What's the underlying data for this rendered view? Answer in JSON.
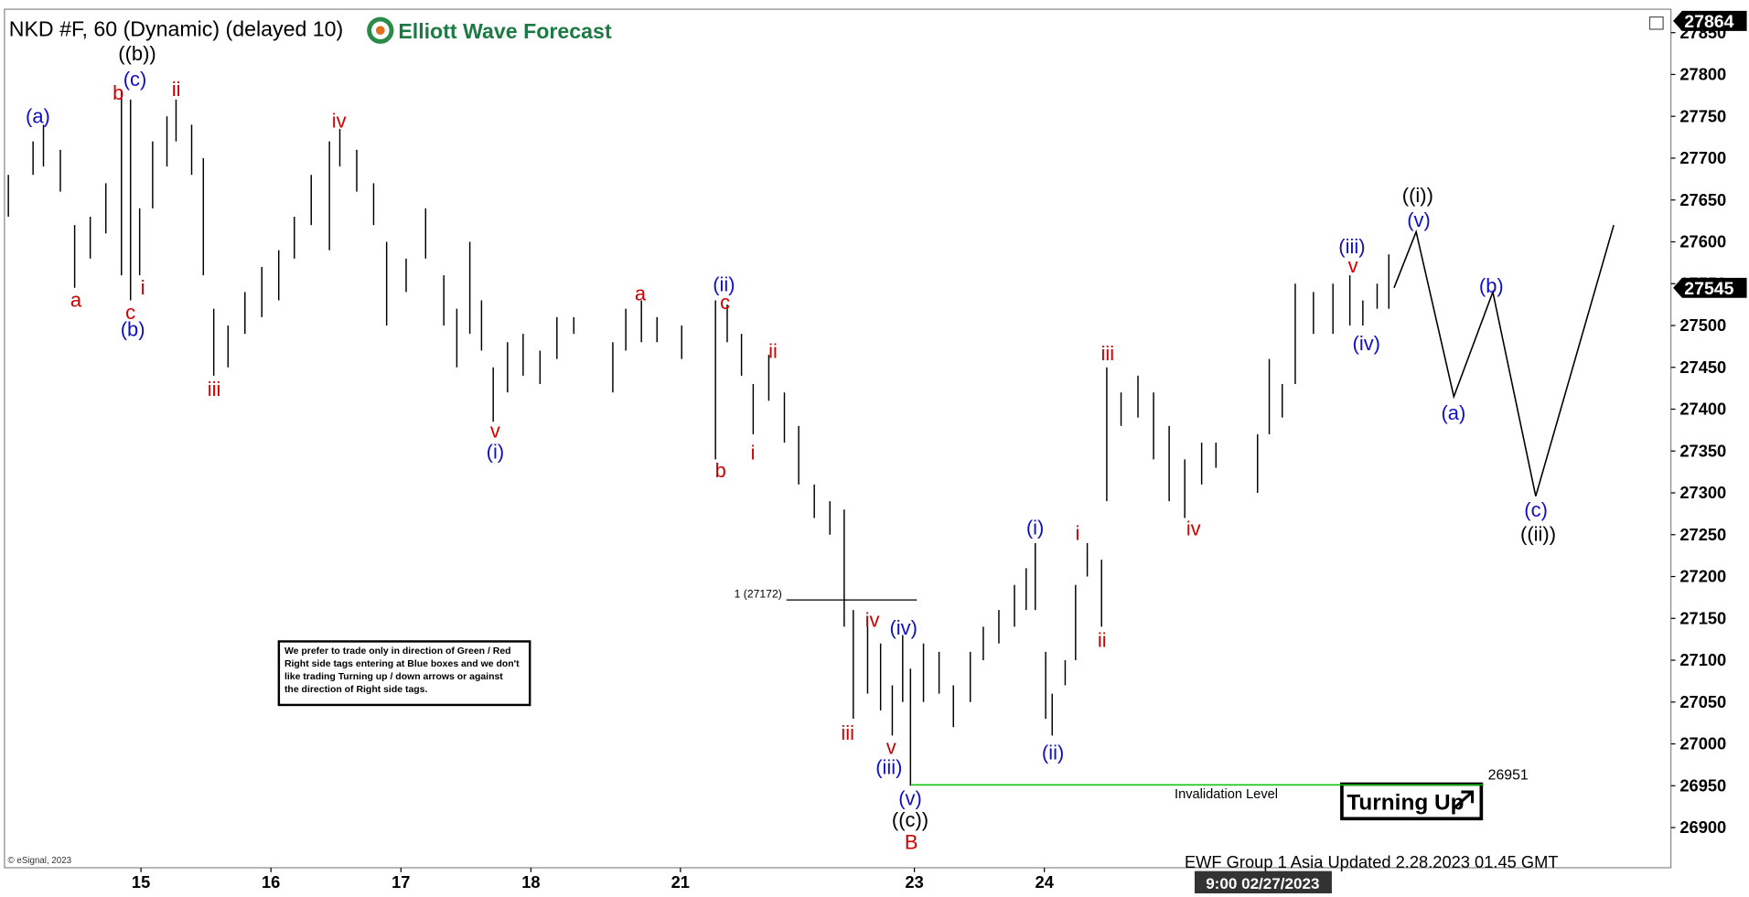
{
  "chart_data": {
    "type": "ohlc",
    "title": "NKD #F, 60 (Dynamic) (delayed 10)",
    "logo": "Elliott Wave Forecast",
    "footer": "EWF Group 1 Asia Updated 2.28.2023 01.45 GMT",
    "copyright": "© eSignal, 2023",
    "time_tag": "9:00 02/27/2023",
    "signal": "Turning Up",
    "note": [
      "We prefer to trade only in direction of Green / Red",
      "Right side tags entering at Blue boxes and we don't",
      "like trading Turning up / down arrows or against",
      "the direction of Right side tags."
    ],
    "xlim": [
      -0.05,
      12.77
    ],
    "xticks": [
      {
        "value": 1,
        "label": "15"
      },
      {
        "value": 2,
        "label": "16"
      },
      {
        "value": 3,
        "label": "17"
      },
      {
        "value": 4,
        "label": "18"
      },
      {
        "value": 5.15,
        "label": "21"
      },
      {
        "value": 6.95,
        "label": "23"
      },
      {
        "value": 7.95,
        "label": "24"
      }
    ],
    "ylim": [
      26852,
      27878
    ],
    "yticks": [
      26900,
      26950,
      27000,
      27050,
      27100,
      27150,
      27200,
      27250,
      27300,
      27350,
      27400,
      27450,
      27500,
      27550,
      27600,
      27650,
      27700,
      27750,
      27800,
      27850
    ],
    "bar_color": "#000000",
    "bars": {
      "x": [
        -0.02,
        0.17,
        0.25,
        0.38,
        0.49,
        0.61,
        0.73,
        0.85,
        0.92,
        0.99,
        1.09,
        1.2,
        1.27,
        1.39,
        1.48,
        1.56,
        1.67,
        1.8,
        1.93,
        2.06,
        2.18,
        2.31,
        2.45,
        2.53,
        2.66,
        2.79,
        2.89,
        3.04,
        3.19,
        3.33,
        3.43,
        3.53,
        3.62,
        3.71,
        3.82,
        3.94,
        4.07,
        4.2,
        4.33,
        4.63,
        4.73,
        4.85,
        4.97,
        5.16,
        5.42,
        5.51,
        5.62,
        5.71,
        5.83,
        5.95,
        6.06,
        6.18,
        6.3,
        6.41,
        6.48,
        6.59,
        6.69,
        6.78,
        6.86,
        6.92,
        7.02,
        7.14,
        7.25,
        7.38,
        7.48,
        7.6,
        7.72,
        7.81,
        7.88,
        7.96,
        8.01,
        8.11,
        8.19,
        8.28,
        8.39,
        8.43,
        8.54,
        8.67,
        8.79,
        8.91,
        9.03,
        9.16,
        9.27,
        9.59,
        9.68,
        9.78,
        9.88,
        10.02,
        10.17,
        10.3,
        10.4,
        10.51,
        10.6
      ],
      "high": [
        27680,
        27720,
        27740,
        27710,
        27620,
        27630,
        27670,
        27780,
        27770,
        27640,
        27720,
        27750,
        27770,
        27740,
        27700,
        27520,
        27500,
        27540,
        27570,
        27590,
        27630,
        27680,
        27720,
        27735,
        27710,
        27670,
        27600,
        27580,
        27640,
        27560,
        27520,
        27600,
        27530,
        27450,
        27480,
        27490,
        27470,
        27510,
        27510,
        27480,
        27520,
        27530,
        27510,
        27500,
        27530,
        27525,
        27490,
        27430,
        27465,
        27420,
        27380,
        27310,
        27290,
        27280,
        27160,
        27140,
        27120,
        27070,
        27130,
        27090,
        27120,
        27110,
        27070,
        27110,
        27140,
        27160,
        27190,
        27210,
        27240,
        27110,
        27060,
        27100,
        27190,
        27240,
        27220,
        27450,
        27420,
        27440,
        27420,
        27380,
        27340,
        27360,
        27360,
        27370,
        27460,
        27430,
        27550,
        27540,
        27550,
        27560,
        27530,
        27550,
        27585
      ],
      "low": [
        27630,
        27680,
        27690,
        27660,
        27545,
        27580,
        27610,
        27560,
        27530,
        27560,
        27640,
        27690,
        27720,
        27680,
        27560,
        27440,
        27450,
        27490,
        27510,
        27530,
        27580,
        27620,
        27590,
        27690,
        27660,
        27620,
        27500,
        27540,
        27580,
        27500,
        27450,
        27490,
        27470,
        27385,
        27420,
        27440,
        27430,
        27460,
        27490,
        27420,
        27470,
        27480,
        27480,
        27460,
        27340,
        27480,
        27440,
        27370,
        27410,
        27360,
        27310,
        27270,
        27250,
        27140,
        27030,
        27060,
        27040,
        27010,
        27050,
        26950,
        27050,
        27060,
        27020,
        27050,
        27100,
        27120,
        27140,
        27160,
        27160,
        27030,
        27010,
        27070,
        27100,
        27200,
        27140,
        27290,
        27380,
        27390,
        27340,
        27290,
        27270,
        27310,
        27330,
        27300,
        27370,
        27390,
        27430,
        27490,
        27490,
        27500,
        27500,
        27520,
        27520
      ]
    },
    "projection": {
      "color": "#000000",
      "x": [
        10.64,
        10.81,
        11.1,
        11.4,
        11.73,
        12.33
      ],
      "y": [
        27545,
        27612,
        27415,
        27540,
        27296,
        27620
      ]
    },
    "fib_level": {
      "label": "1 (27172)",
      "value": 27172
    },
    "invalidation": {
      "label": "26951",
      "text": "Invalidation Level",
      "value": 26951,
      "color": "#00c000"
    },
    "price_tags": [
      {
        "label": "27864",
        "value": 27864
      },
      {
        "label": "27545",
        "value": 27545
      }
    ],
    "wave_labels": [
      {
        "text": "(a)",
        "color": "#1010c0"
      },
      {
        "text": "b",
        "color": "#d00000"
      },
      {
        "text": "((b))",
        "color": "#000000"
      },
      {
        "text": "(c)",
        "color": "#1010c0"
      },
      {
        "text": "ii",
        "color": "#d00000"
      },
      {
        "text": "a",
        "color": "#d00000"
      },
      {
        "text": "c",
        "color": "#d00000"
      },
      {
        "text": "i",
        "color": "#d00000"
      },
      {
        "text": "(b)",
        "color": "#1010c0"
      },
      {
        "text": "iii",
        "color": "#d00000"
      },
      {
        "text": "iv",
        "color": "#d00000"
      },
      {
        "text": "v",
        "color": "#d00000"
      },
      {
        "text": "(i)",
        "color": "#1010c0"
      },
      {
        "text": "a",
        "color": "#d00000"
      },
      {
        "text": "(ii)",
        "color": "#1010c0"
      },
      {
        "text": "c",
        "color": "#d00000"
      },
      {
        "text": "ii",
        "color": "#d00000"
      },
      {
        "text": "b",
        "color": "#d00000"
      },
      {
        "text": "i",
        "color": "#d00000"
      },
      {
        "text": "iv",
        "color": "#d00000"
      },
      {
        "text": "(iv)",
        "color": "#1010c0"
      },
      {
        "text": "iii",
        "color": "#d00000"
      },
      {
        "text": "v",
        "color": "#d00000"
      },
      {
        "text": "(iii)",
        "color": "#1010c0"
      },
      {
        "text": "(v)",
        "color": "#1010c0"
      },
      {
        "text": "((c))",
        "color": "#000000"
      },
      {
        "text": "B",
        "color": "#d00000"
      },
      {
        "text": "(i)",
        "color": "#1010c0"
      },
      {
        "text": "i",
        "color": "#d00000"
      },
      {
        "text": "ii",
        "color": "#d00000"
      },
      {
        "text": "(ii)",
        "color": "#1010c0"
      },
      {
        "text": "iii",
        "color": "#d00000"
      },
      {
        "text": "iv",
        "color": "#d00000"
      },
      {
        "text": "(iii)",
        "color": "#1010c0"
      },
      {
        "text": "v",
        "color": "#d00000"
      },
      {
        "text": "(iv)",
        "color": "#1010c0"
      },
      {
        "text": "((i))",
        "color": "#000000"
      },
      {
        "text": "(v)",
        "color": "#1010c0"
      },
      {
        "text": "(b)",
        "color": "#1010c0"
      },
      {
        "text": "(a)",
        "color": "#1010c0"
      },
      {
        "text": "(c)",
        "color": "#1010c0"
      },
      {
        "text": "((ii))",
        "color": "#000000"
      }
    ]
  }
}
